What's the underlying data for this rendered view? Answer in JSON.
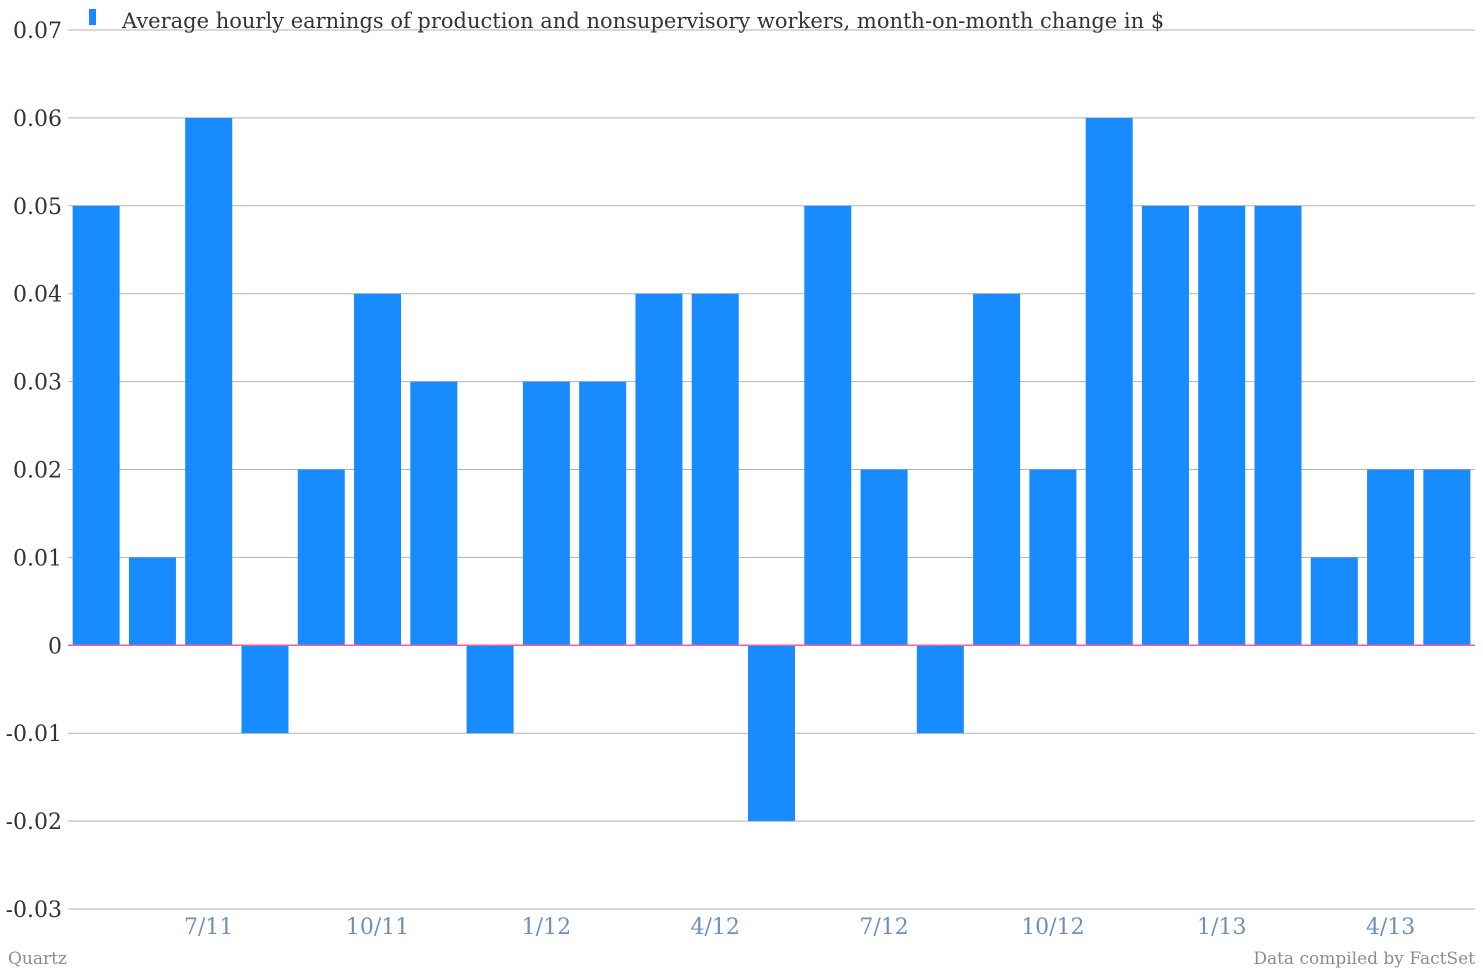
{
  "colors": {
    "bar": "#178bff",
    "grid": "#b3b3b3",
    "zero_line": "#ff5aa0",
    "tick_text": "#333333",
    "x_tick_text": "#6e8fbf",
    "credit_text": "#8c8c8c"
  },
  "footer": {
    "source": "Quartz",
    "note": "Data compiled by FactSet"
  },
  "chart_data": {
    "type": "bar",
    "title": "",
    "xlabel": "",
    "ylabel": "",
    "legend": {
      "position": "top-left",
      "entries": [
        "Average hourly earnings of production and nonsupervisory workers, month-on-month change in $"
      ]
    },
    "grid": true,
    "ylim": [
      -0.03,
      0.07
    ],
    "yticks": [
      -0.03,
      -0.02,
      -0.01,
      0,
      0.01,
      0.02,
      0.03,
      0.04,
      0.05,
      0.06,
      0.07
    ],
    "ytick_labels": [
      "-0.03",
      "-0.02",
      "-0.01",
      "0",
      "0.01",
      "0.02",
      "0.03",
      "0.04",
      "0.05",
      "0.06",
      "0.07"
    ],
    "categories": [
      "5/11",
      "6/11",
      "7/11",
      "8/11",
      "9/11",
      "10/11",
      "11/11",
      "12/11",
      "1/12",
      "2/12",
      "3/12",
      "4/12",
      "5/12",
      "6/12",
      "7/12",
      "8/12",
      "9/12",
      "10/12",
      "11/12",
      "12/12",
      "1/13",
      "2/13",
      "3/13",
      "4/13",
      "5/13"
    ],
    "x_tick_labels": [
      {
        "category": "7/11",
        "label": "7/11"
      },
      {
        "category": "10/11",
        "label": "10/11"
      },
      {
        "category": "1/12",
        "label": "1/12"
      },
      {
        "category": "4/12",
        "label": "4/12"
      },
      {
        "category": "7/12",
        "label": "7/12"
      },
      {
        "category": "10/12",
        "label": "10/12"
      },
      {
        "category": "1/13",
        "label": "1/13"
      },
      {
        "category": "4/13",
        "label": "4/13"
      }
    ],
    "series": [
      {
        "name": "Average hourly earnings of production and nonsupervisory workers, month-on-month change in $",
        "values": [
          0.05,
          0.01,
          0.06,
          -0.01,
          0.02,
          0.04,
          0.03,
          -0.01,
          0.03,
          0.03,
          0.04,
          0.04,
          -0.02,
          0.05,
          0.02,
          -0.01,
          0.04,
          0.02,
          0.06,
          0.05,
          0.05,
          0.05,
          0.01,
          0.02,
          0.02
        ]
      }
    ]
  }
}
